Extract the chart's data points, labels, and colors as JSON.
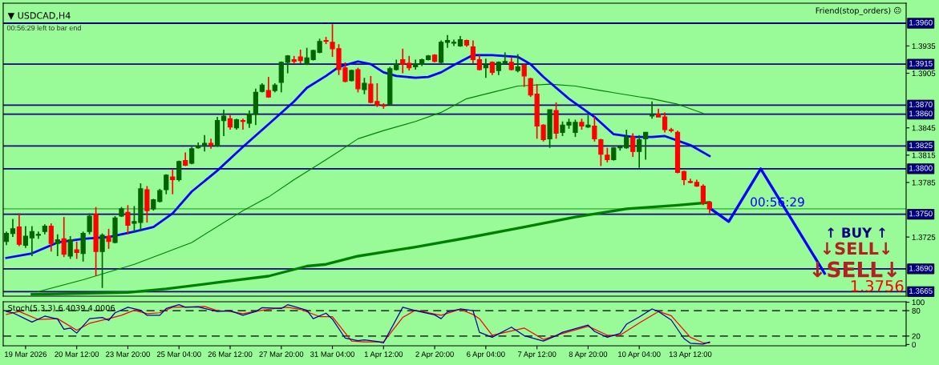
{
  "chart_data": [
    {
      "type": "candlestick",
      "title": "▼ USDCAD,H4",
      "subtitle": "00:56:29 left to bar end",
      "categories": [
        null,
        null,
        null,
        null,
        null,
        null,
        null,
        null,
        null,
        null,
        null,
        null,
        null,
        null,
        null,
        null,
        null,
        null,
        null,
        null,
        null,
        null,
        null,
        null,
        null,
        null,
        null,
        null,
        null,
        null,
        null,
        null,
        null,
        null,
        null,
        null,
        null,
        null,
        null,
        null,
        null,
        null,
        null,
        null,
        null,
        null,
        null,
        null,
        null,
        null,
        null,
        null,
        null,
        null,
        null,
        null,
        null,
        null,
        null,
        null,
        null,
        null,
        null,
        null,
        null,
        null,
        null,
        null,
        null,
        null,
        null,
        null,
        null,
        null,
        null,
        null,
        null,
        null,
        null,
        null,
        null,
        null,
        null,
        null,
        null,
        null,
        null,
        null,
        null,
        null,
        null,
        null,
        null,
        null,
        null,
        null,
        null,
        null,
        null,
        null,
        null,
        null,
        null,
        null,
        null,
        null,
        null,
        null,
        null,
        null,
        null,
        null,
        null,
        null,
        null,
        null,
        null,
        null,
        null,
        null,
        null,
        null,
        null,
        null,
        null,
        null,
        null,
        null,
        null,
        null,
        null,
        null,
        null,
        null,
        null,
        null,
        null,
        null,
        null,
        null,
        null
      ],
      "ohlc": [
        [
          1.372,
          1.3731,
          1.3716,
          1.3729
        ],
        [
          1.3729,
          1.3745,
          1.3725,
          1.3734
        ],
        [
          1.3736,
          1.3751,
          1.3715,
          1.3717
        ],
        [
          1.3716,
          1.3737,
          1.3713,
          1.3726
        ],
        [
          1.3724,
          1.3737,
          1.3704,
          1.3731
        ],
        [
          1.3727,
          1.3731,
          1.3723,
          1.3728
        ],
        [
          1.3731,
          1.3739,
          1.3728,
          1.3737
        ],
        [
          1.3737,
          1.374,
          1.3709,
          1.3718
        ],
        [
          1.3718,
          1.3728,
          1.3704,
          1.3722
        ],
        [
          1.3723,
          1.3747,
          1.3703,
          1.3706
        ],
        [
          1.3704,
          1.3726,
          1.3701,
          1.3722
        ],
        [
          1.3711,
          1.372,
          1.3701,
          1.3708
        ],
        [
          1.3707,
          1.3731,
          1.3698,
          1.3729
        ],
        [
          1.3731,
          1.3751,
          1.3728,
          1.3748
        ],
        [
          1.375,
          1.3758,
          1.3682,
          1.3709
        ],
        [
          1.3709,
          1.3729,
          1.3669,
          1.3727
        ],
        [
          1.3726,
          1.3734,
          1.3712,
          1.372
        ],
        [
          1.3719,
          1.3748,
          1.3718,
          1.3746
        ],
        [
          1.3748,
          1.3758,
          1.3747,
          1.3756
        ],
        [
          1.3752,
          1.376,
          1.3728,
          1.3738
        ],
        [
          1.374,
          1.3759,
          1.3731,
          1.3742
        ],
        [
          1.3741,
          1.3784,
          1.3732,
          1.3778
        ],
        [
          1.3777,
          1.3781,
          1.3741,
          1.3754
        ],
        [
          1.3756,
          1.3767,
          1.3754,
          1.3766
        ],
        [
          1.3764,
          1.3778,
          1.3763,
          1.3776
        ],
        [
          1.3777,
          1.3794,
          1.3772,
          1.3793
        ],
        [
          1.3791,
          1.38,
          1.3772,
          1.3788
        ],
        [
          1.3788,
          1.3809,
          1.3786,
          1.3808
        ],
        [
          1.3809,
          1.3818,
          1.3803,
          1.3804
        ],
        [
          1.3806,
          1.3824,
          1.3805,
          1.3822
        ],
        [
          1.3823,
          1.3829,
          1.3822,
          1.3825
        ],
        [
          1.3826,
          1.3837,
          1.3819,
          1.3828
        ],
        [
          1.3828,
          1.3833,
          1.3822,
          1.3826
        ],
        [
          1.3825,
          1.3857,
          1.3824,
          1.3853
        ],
        [
          1.3853,
          1.3865,
          1.3836,
          1.3858
        ],
        [
          1.3855,
          1.3859,
          1.3843,
          1.3846
        ],
        [
          1.3845,
          1.3855,
          1.3843,
          1.3854
        ],
        [
          1.3853,
          1.3855,
          1.3843,
          1.3852
        ],
        [
          1.385,
          1.3864,
          1.3845,
          1.386
        ],
        [
          1.386,
          1.3888,
          1.3848,
          1.3884
        ],
        [
          1.3885,
          1.3894,
          1.3884,
          1.3892
        ],
        [
          1.3886,
          1.3901,
          1.3878,
          1.3879
        ],
        [
          1.3886,
          1.3894,
          1.3884,
          1.3892
        ],
        [
          1.3895,
          1.3918,
          1.3884,
          1.3917
        ],
        [
          1.3917,
          1.3925,
          1.3905,
          1.3924
        ],
        [
          1.392,
          1.3924,
          1.3915,
          1.3918
        ],
        [
          1.3923,
          1.3931,
          1.3916,
          1.3919
        ],
        [
          1.3915,
          1.3933,
          1.3914,
          1.3922
        ],
        [
          1.392,
          1.3931,
          1.3919,
          1.393
        ],
        [
          1.3928,
          1.3943,
          1.3927,
          1.394
        ],
        [
          1.3941,
          1.3945,
          1.3937,
          1.394
        ],
        [
          1.3939,
          1.3959,
          1.3923,
          1.3932
        ],
        [
          1.3932,
          1.3937,
          1.3903,
          1.3909
        ],
        [
          1.3911,
          1.3917,
          1.3895,
          1.3896
        ],
        [
          1.3897,
          1.3909,
          1.3896,
          1.3908
        ],
        [
          1.3909,
          1.3911,
          1.3884,
          1.3888
        ],
        [
          1.3887,
          1.39,
          1.3882,
          1.3894
        ],
        [
          1.3893,
          1.3902,
          1.3872,
          1.3873
        ],
        [
          1.3874,
          1.3894,
          1.3868,
          1.387
        ],
        [
          1.387,
          1.3872,
          1.3866,
          1.3869
        ],
        [
          1.3871,
          1.3912,
          1.387,
          1.391
        ],
        [
          1.3909,
          1.392,
          1.3908,
          1.3915
        ],
        [
          1.392,
          1.3932,
          1.3905,
          1.3915
        ],
        [
          1.3916,
          1.3924,
          1.3908,
          1.3911
        ],
        [
          1.3912,
          1.392,
          1.3909,
          1.3915
        ],
        [
          1.3915,
          1.3921,
          1.3913,
          1.392
        ],
        [
          1.392,
          1.3925,
          1.3919,
          1.3924
        ],
        [
          1.3925,
          1.3926,
          1.3917,
          1.3918
        ],
        [
          1.3917,
          1.3941,
          1.3916,
          1.3939
        ],
        [
          1.3939,
          1.3947,
          1.3933,
          1.3941
        ],
        [
          1.3938,
          1.3942,
          1.3935,
          1.3939
        ],
        [
          1.3935,
          1.3946,
          1.3934,
          1.3942
        ],
        [
          1.3941,
          1.3942,
          1.3934,
          1.3936
        ],
        [
          1.3934,
          1.3941,
          1.3916,
          1.392
        ],
        [
          1.392,
          1.3925,
          1.3908,
          1.3909
        ],
        [
          1.3911,
          1.3921,
          1.39,
          1.3914
        ],
        [
          1.3917,
          1.3918,
          1.3903,
          1.3906
        ],
        [
          1.3908,
          1.3918,
          1.3903,
          1.3917
        ],
        [
          1.3916,
          1.3928,
          1.3915,
          1.3918
        ],
        [
          1.3917,
          1.3923,
          1.3908,
          1.3909
        ],
        [
          1.3908,
          1.3926,
          1.3906,
          1.3912
        ],
        [
          1.3914,
          1.3915,
          1.389,
          1.3902
        ],
        [
          1.3899,
          1.39,
          1.3879,
          1.3881
        ],
        [
          1.3882,
          1.3893,
          1.3833,
          1.3847
        ],
        [
          1.3848,
          1.3849,
          1.383,
          1.3832
        ],
        [
          1.3833,
          1.3865,
          1.3823,
          1.3865
        ],
        [
          1.3864,
          1.3873,
          1.3833,
          1.3839
        ],
        [
          1.384,
          1.3852,
          1.3836,
          1.3848
        ],
        [
          1.3848,
          1.3855,
          1.3844,
          1.3851
        ],
        [
          1.384,
          1.3854,
          1.3835,
          1.3851
        ],
        [
          1.3851,
          1.3855,
          1.3843,
          1.3847
        ],
        [
          1.3846,
          1.3859,
          1.3845,
          1.3848
        ],
        [
          1.3847,
          1.3857,
          1.383,
          1.3833
        ],
        [
          1.3832,
          1.3833,
          1.3803,
          1.3816
        ],
        [
          1.3815,
          1.3823,
          1.3807,
          1.381
        ],
        [
          1.381,
          1.3824,
          1.3809,
          1.3823
        ],
        [
          1.3823,
          1.3826,
          1.382,
          1.3824
        ],
        [
          1.3823,
          1.3843,
          1.3822,
          1.3835
        ],
        [
          1.3835,
          1.3839,
          1.3813,
          1.3819
        ],
        [
          1.3819,
          1.3837,
          1.3801,
          1.3832
        ],
        [
          1.3833,
          1.384,
          1.381,
          1.384
        ],
        [
          1.3858,
          1.3874,
          1.3855,
          1.3859
        ],
        [
          1.386,
          1.3866,
          1.3857,
          1.3857
        ],
        [
          1.3857,
          1.3862,
          1.384,
          1.3843
        ],
        [
          1.3843,
          1.3845,
          1.384,
          1.3842
        ],
        [
          1.384,
          1.3842,
          1.3795,
          1.3796
        ],
        [
          1.3797,
          1.3798,
          1.3782,
          1.3788
        ],
        [
          1.3786,
          1.3789,
          1.3784,
          1.3785
        ],
        [
          1.3785,
          1.3788,
          1.378,
          1.3781
        ],
        [
          1.3781,
          1.3783,
          1.376,
          1.3763
        ],
        [
          1.3763,
          1.3764,
          1.3751,
          1.3756
        ],
        null,
        null,
        null,
        null,
        null,
        null,
        null,
        null,
        null,
        null,
        null,
        null,
        null,
        null,
        null,
        null,
        null,
        null,
        null,
        null,
        null,
        null,
        null,
        null,
        null,
        null,
        null,
        null,
        null,
        null
      ],
      "colors": [
        "#006400",
        "#006400",
        "#ff0000",
        "#006400",
        "#006400",
        "#006400",
        "#006400",
        "#ff0000",
        "#006400",
        "#ff0000",
        "#006400",
        "#ff0000",
        "#006400",
        "#006400",
        "#ff0000",
        "#006400",
        "#ff0000",
        "#006400",
        "#006400",
        "#ff0000",
        "#006400",
        "#006400",
        "#ff0000",
        "#006400",
        "#006400",
        "#006400",
        "#ff0000",
        "#006400",
        "#ff0000",
        "#006400",
        "#006400",
        "#006400",
        "#ff0000",
        "#006400",
        "#006400",
        "#ff0000",
        "#006400",
        "#ff0000",
        "#006400",
        "#006400",
        "#006400",
        "#ff0000",
        "#006400",
        "#006400",
        "#006400",
        "#ff0000",
        "#ff0000",
        "#006400",
        "#006400",
        "#006400",
        "#ff0000",
        "#ff0000",
        "#ff0000",
        "#ff0000",
        "#006400",
        "#ff0000",
        "#006400",
        "#ff0000",
        "#ff0000",
        "#ff0000",
        "#006400",
        "#006400",
        "#ff0000",
        "#ff0000",
        "#006400",
        "#006400",
        "#006400",
        "#ff0000",
        "#006400",
        "#006400",
        "#006400",
        "#006400",
        "#ff0000",
        "#ff0000",
        "#ff0000",
        "#006400",
        "#ff0000",
        "#006400",
        "#006400",
        "#ff0000",
        "#006400",
        "#ff0000",
        "#ff0000",
        "#ff0000",
        "#ff0000",
        "#006400",
        "#ff0000",
        "#006400",
        "#006400",
        "#006400",
        "#ff0000",
        "#006400",
        "#ff0000",
        "#ff0000",
        "#ff0000",
        "#006400",
        "#006400",
        "#006400",
        "#ff0000",
        "#006400",
        "#006400",
        "#006400",
        "#ff0000",
        "#ff0000",
        "#ff0000",
        "#ff0000",
        "#ff0000",
        "#ff0000",
        "#ff0000",
        "#ff0000",
        "#ff0000",
        null,
        null,
        null,
        null,
        null,
        null,
        null,
        null,
        null,
        null,
        null,
        null,
        null,
        null,
        null,
        null,
        null,
        null,
        null,
        null,
        null,
        null,
        null,
        null,
        null,
        null,
        null,
        null,
        null,
        null
      ],
      "series": [
        {
          "type": "line",
          "color": "#0000ff",
          "values": [
            1.3702,
            null,
            null,
            null,
            1.3707,
            null,
            null,
            null,
            1.3719,
            null,
            null,
            null,
            1.3723,
            null,
            null,
            null,
            1.3725,
            null,
            null,
            null,
            1.3731,
            null,
            null,
            1.3736,
            null,
            null,
            1.3751,
            null,
            null,
            1.3775,
            null,
            null,
            null,
            1.3798,
            null,
            null,
            null,
            1.3824,
            null,
            null,
            null,
            1.3849,
            null,
            null,
            null,
            1.3874,
            null,
            1.3889,
            null,
            null,
            1.3902,
            null,
            1.3912,
            null,
            null,
            1.3918,
            null,
            1.3915,
            null,
            1.3906,
            null,
            1.3902,
            null,
            null,
            1.39,
            null,
            1.3901,
            null,
            1.3906,
            null,
            1.3914,
            null,
            null,
            1.3925,
            null,
            null,
            1.3925,
            null,
            null,
            null,
            1.3923,
            null,
            1.3915,
            null,
            1.3901,
            null,
            null,
            null,
            1.3877,
            null,
            null,
            null,
            1.3857,
            null,
            null,
            1.3838,
            null,
            null,
            1.3835,
            null,
            null,
            1.3835,
            null,
            1.3836,
            null,
            null,
            null,
            1.3826,
            null,
            null,
            1.3814,
            null,
            null,
            null,
            null,
            null,
            null,
            null,
            null,
            null,
            null,
            null,
            null,
            null,
            null,
            null,
            null,
            null,
            null,
            null,
            null,
            null,
            null,
            null,
            null,
            null,
            null,
            null,
            null,
            null,
            null
          ]
        },
        {
          "type": "line",
          "color": "#008000",
          "values": [
            null,
            null,
            null,
            null,
            null,
            1.3665,
            null,
            null,
            null,
            null,
            null,
            null,
            1.3678,
            null,
            null,
            null,
            null,
            null,
            null,
            null,
            1.3695,
            null,
            null,
            null,
            null,
            null,
            null,
            null,
            null,
            1.3719,
            null,
            null,
            null,
            null,
            null,
            null,
            null,
            1.3754,
            null,
            null,
            null,
            1.3769,
            null,
            null,
            null,
            1.3788,
            null,
            null,
            null,
            null,
            1.381,
            null,
            1.3819,
            null,
            null,
            1.3833,
            null,
            null,
            null,
            1.3842,
            null,
            null,
            null,
            null,
            1.3852,
            null,
            null,
            null,
            1.3862,
            null,
            null,
            null,
            1.3877,
            null,
            null,
            null,
            1.3884,
            null,
            null,
            null,
            1.3891,
            null,
            null,
            null,
            null,
            1.3893,
            null,
            null,
            null,
            1.3891,
            null,
            null,
            null,
            1.3886,
            null,
            null,
            null,
            null,
            null,
            1.3879,
            null,
            1.3877,
            null,
            null,
            null,
            1.3871,
            null,
            null,
            null,
            1.3861,
            null,
            null,
            null,
            null,
            null,
            null,
            null,
            null,
            null,
            null,
            null,
            null,
            null,
            null,
            null,
            null,
            null,
            null,
            null,
            null,
            null,
            null,
            null,
            null,
            null,
            null,
            null,
            null,
            null,
            null,
            null
          ]
        },
        {
          "type": "line",
          "color": "#008000",
          "values": [
            null,
            null,
            null,
            null,
            1.3662,
            null,
            null,
            null,
            null,
            null,
            null,
            null,
            null,
            null,
            null,
            null,
            null,
            null,
            null,
            1.3664,
            null,
            null,
            null,
            null,
            null,
            1.3668,
            null,
            null,
            null,
            null,
            null,
            null,
            null,
            1.3675,
            null,
            null,
            null,
            null,
            null,
            null,
            null,
            1.3682,
            null,
            null,
            null,
            null,
            null,
            1.3693,
            null,
            null,
            1.3695,
            null,
            null,
            null,
            null,
            1.3704,
            null,
            null,
            null,
            null,
            null,
            null,
            null,
            null,
            1.3714,
            null,
            null,
            null,
            null,
            null,
            null,
            null,
            1.3724,
            null,
            null,
            null,
            null,
            null,
            null,
            null,
            null,
            1.3736,
            null,
            null,
            null,
            null,
            null,
            null,
            null,
            1.3747,
            null,
            null,
            null,
            null,
            null,
            null,
            null,
            1.3756,
            null,
            null,
            null,
            null,
            null,
            null,
            null,
            1.376,
            null,
            null,
            null,
            null,
            1.3763,
            null,
            null,
            null,
            null,
            null,
            null,
            null,
            null,
            null,
            null,
            null,
            null,
            null,
            null,
            null,
            null,
            null,
            null,
            null,
            null,
            null,
            null,
            null,
            null,
            null,
            null,
            null,
            null,
            null,
            null
          ]
        },
        {
          "type": "line",
          "color": "#0000ff",
          "values": [
            null,
            null,
            null,
            null,
            null,
            null,
            null,
            null,
            null,
            null,
            null,
            null,
            null,
            null,
            null,
            null,
            null,
            null,
            null,
            null,
            null,
            null,
            null,
            null,
            null,
            null,
            null,
            null,
            null,
            null,
            null,
            null,
            null,
            null,
            null,
            null,
            null,
            null,
            null,
            null,
            null,
            null,
            null,
            null,
            null,
            null,
            null,
            null,
            null,
            null,
            null,
            null,
            null,
            null,
            null,
            null,
            null,
            null,
            null,
            null,
            null,
            null,
            null,
            null,
            null,
            null,
            null,
            null,
            null,
            null,
            null,
            null,
            null,
            null,
            null,
            null,
            null,
            null,
            null,
            null,
            null,
            null,
            null,
            null,
            null,
            null,
            null,
            null,
            null,
            null,
            null,
            null,
            null,
            null,
            null,
            null,
            null,
            null,
            null,
            null,
            null,
            null,
            null,
            null,
            null,
            null,
            null,
            null,
            null,
            null,
            1.3757,
            null,
            null,
            1.3742,
            null,
            null,
            null,
            null,
            1.38,
            null,
            null,
            null,
            null,
            null,
            null,
            null,
            null,
            null,
            1.3685,
            null,
            null,
            null,
            null,
            null,
            null,
            null,
            null,
            null,
            null,
            null,
            null
          ]
        }
      ],
      "ylim": [
        1.366,
        1.3982
      ],
      "yticks": [
        1.3935,
        1.3905,
        1.3845,
        1.3815,
        1.3785,
        1.3725
      ],
      "tick_labels": "y",
      "ref_lines": [
        {
          "axis": "y",
          "value": 1.396,
          "label": "1.3960",
          "color": "#000080"
        },
        {
          "axis": "y",
          "value": 1.3915,
          "label": "1.3915",
          "color": "#000080"
        },
        {
          "axis": "y",
          "value": 1.387,
          "label": "1.3870",
          "color": "#000080"
        },
        {
          "axis": "y",
          "value": 1.386,
          "label": "1.3860",
          "color": "#000080"
        },
        {
          "axis": "y",
          "value": 1.3825,
          "label": "1.3825",
          "color": "#000080"
        },
        {
          "axis": "y",
          "value": 1.38,
          "label": "1.3800",
          "color": "#000080"
        },
        {
          "axis": "y",
          "value": 1.375,
          "label": "1.3750",
          "color": "#000080"
        },
        {
          "axis": "y",
          "value": 1.369,
          "label": "1.3690",
          "color": "#000080"
        },
        {
          "axis": "y",
          "value": 1.3665,
          "label": "1.3665",
          "color": "#000080"
        },
        {
          "axis": "y",
          "value": 1.3756,
          "label": null,
          "color": "#33aa33"
        }
      ],
      "annotations": [
        "00:56:29",
        "↑ BUY ↑",
        "↓SELL↓",
        "↓SELL↓",
        "1.3756",
        "Friend(stop_orders) ☹"
      ]
    },
    {
      "type": "line",
      "title": "Stoch(5,3,3) 6.4039 4.0006",
      "categories": [
        null,
        null,
        null,
        "19 Mar 2026",
        null,
        null,
        null,
        null,
        null,
        null,
        null,
        "20 Mar 12:00",
        null,
        null,
        null,
        null,
        null,
        null,
        null,
        "23 Mar 20:00",
        null,
        null,
        null,
        null,
        null,
        null,
        null,
        "25 Mar 04:00",
        null,
        null,
        null,
        null,
        null,
        null,
        null,
        "26 Mar 12:00",
        null,
        null,
        null,
        null,
        null,
        null,
        null,
        "27 Mar 20:00",
        null,
        null,
        null,
        null,
        null,
        null,
        null,
        "31 Mar 04:00",
        null,
        null,
        null,
        null,
        null,
        null,
        null,
        "1 Apr 12:00",
        null,
        null,
        null,
        null,
        null,
        null,
        null,
        "2 Apr 20:00",
        null,
        null,
        null,
        null,
        null,
        null,
        null,
        "6 Apr 04:00",
        null,
        null,
        null,
        null,
        null,
        null,
        null,
        "7 Apr 12:00",
        null,
        null,
        null,
        null,
        null,
        null,
        null,
        "8 Apr 20:00",
        null,
        null,
        null,
        null,
        null,
        null,
        null,
        "10 Apr 04:00",
        null,
        null,
        null,
        null,
        null,
        null,
        null,
        "13 Apr 12:00",
        null,
        null,
        null,
        null,
        null,
        null,
        null,
        null,
        null,
        null,
        null,
        null,
        null,
        null,
        null,
        null,
        null,
        null,
        null,
        null,
        null,
        null,
        null,
        null,
        null,
        null,
        null,
        null,
        null,
        null,
        null,
        null,
        null
      ],
      "series": [
        {
          "color": "#0000a0",
          "values": [
            78,
            75,
            null,
            null,
            53,
            null,
            67,
            null,
            60,
            36,
            39,
            27,
            null,
            61,
            null,
            64,
            57,
            75,
            null,
            88,
            null,
            81,
            69,
            null,
            69,
            85,
            null,
            94,
            88,
            null,
            89,
            85,
            null,
            78,
            null,
            80,
            null,
            69,
            null,
            78,
            87,
            null,
            null,
            85,
            94,
            null,
            null,
            81,
            61,
            null,
            74,
            60,
            null,
            15,
            null,
            9,
            11,
            null,
            7,
            4,
            null,
            null,
            88,
            null,
            80,
            null,
            null,
            70,
            61,
            77,
            null,
            84,
            null,
            80,
            29,
            null,
            17,
            null,
            null,
            41,
            null,
            21,
            null,
            null,
            8,
            null,
            21,
            29,
            null,
            null,
            null,
            46,
            31,
            null,
            17,
            null,
            26,
            48,
            null,
            65,
            null,
            84,
            78,
            null,
            58,
            null,
            14,
            3,
            null,
            1,
            6,
            null,
            null,
            null,
            null,
            null,
            null,
            null,
            null,
            null,
            null,
            null,
            null,
            null,
            null,
            null,
            null,
            null,
            null,
            null,
            null,
            null,
            null,
            null,
            null,
            null,
            null,
            null,
            null,
            null,
            null
          ]
        },
        {
          "color": "#ff0000",
          "values": [
            71,
            null,
            78,
            null,
            null,
            59,
            null,
            null,
            61,
            null,
            null,
            34,
            null,
            50,
            null,
            null,
            61,
            null,
            69,
            null,
            81,
            null,
            73,
            null,
            75,
            null,
            88,
            null,
            null,
            89,
            null,
            90,
            null,
            80,
            null,
            78,
            null,
            73,
            null,
            null,
            81,
            null,
            85,
            null,
            88,
            null,
            83,
            null,
            null,
            66,
            null,
            66,
            null,
            null,
            8,
            null,
            6,
            null,
            null,
            6,
            null,
            null,
            64,
            null,
            81,
            null,
            null,
            null,
            69,
            null,
            null,
            83,
            null,
            71,
            61,
            null,
            22,
            null,
            null,
            null,
            null,
            39,
            null,
            null,
            12,
            null,
            null,
            26,
            null,
            null,
            null,
            43,
            null,
            null,
            22,
            null,
            22,
            null,
            null,
            51,
            null,
            null,
            78,
            null,
            68,
            null,
            null,
            17,
            null,
            4,
            4,
            null,
            null,
            null,
            null,
            null,
            null,
            null,
            null,
            null,
            null,
            null,
            null,
            null,
            null,
            null,
            null,
            null,
            null,
            null,
            null,
            null,
            null,
            null,
            null,
            null,
            null,
            null,
            null,
            null,
            null
          ]
        }
      ],
      "ylim": [
        -3,
        101
      ],
      "yticks": [
        0,
        20,
        80,
        100
      ],
      "ref_lines": [
        {
          "axis": "y",
          "value": 80,
          "label": null,
          "color": "#000000",
          "line_style": "dashed"
        },
        {
          "axis": "y",
          "value": 20,
          "label": null,
          "color": "#000000",
          "line_style": "dashed"
        }
      ]
    }
  ]
}
